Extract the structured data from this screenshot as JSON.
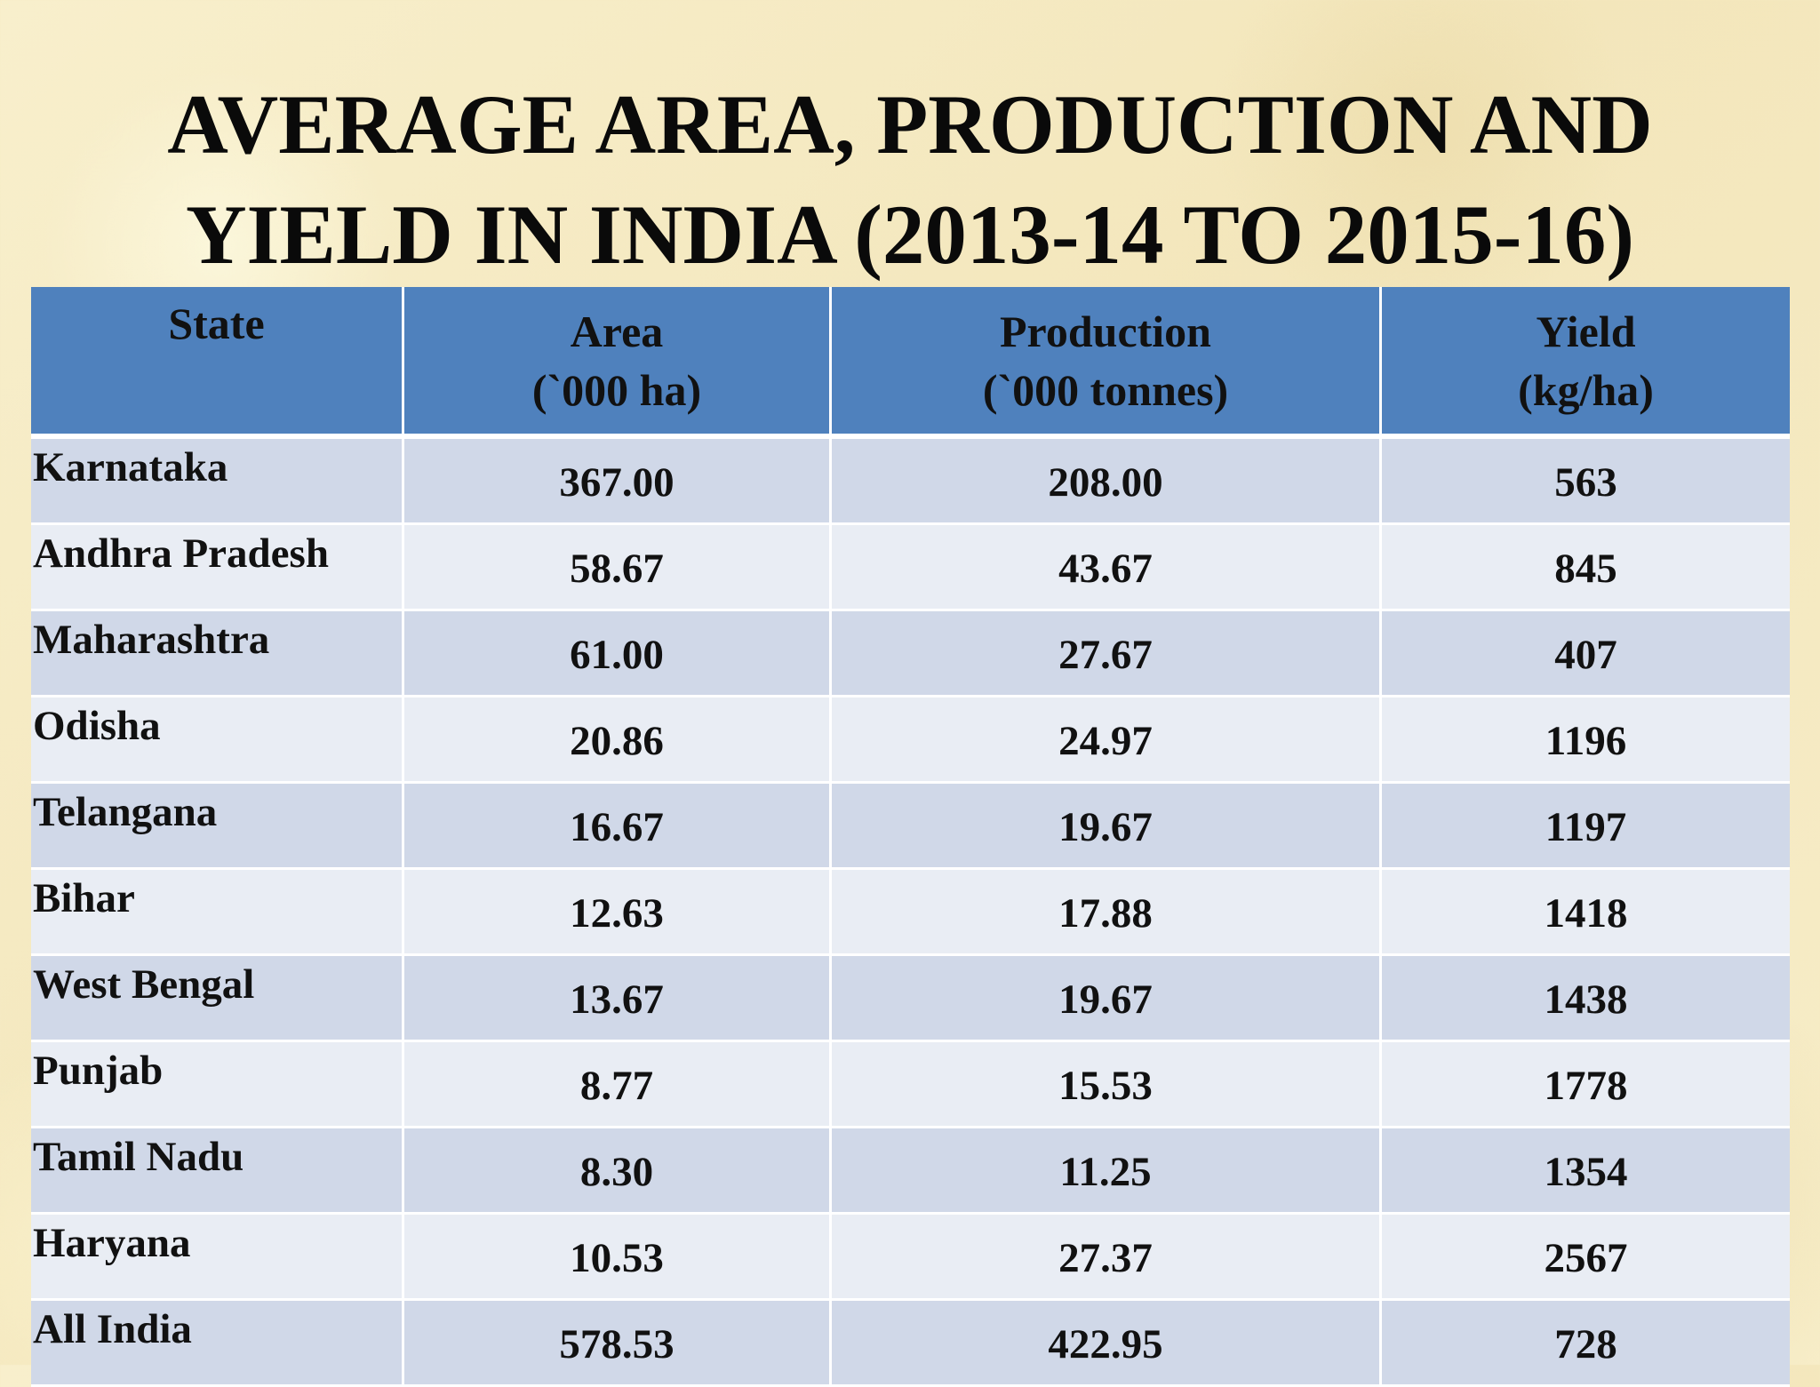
{
  "slide": {
    "title_line1": "AVERAGE AREA, PRODUCTION AND",
    "title_line2": "YIELD IN INDIA (2013-14 TO 2015-16)"
  },
  "table": {
    "headers": {
      "state": "State",
      "area_line1": "Area",
      "area_line2": "(`000 ha)",
      "production_line1": "Production",
      "production_line2": "(`000 tonnes)",
      "yield_line1": "Yield",
      "yield_line2": "(kg/ha)"
    },
    "rows": [
      {
        "state": "Karnataka",
        "area": "367.00",
        "production": "208.00",
        "yield": "563"
      },
      {
        "state": "Andhra Pradesh",
        "area": "58.67",
        "production": "43.67",
        "yield": "845"
      },
      {
        "state": "Maharashtra",
        "area": "61.00",
        "production": "27.67",
        "yield": "407"
      },
      {
        "state": "Odisha",
        "area": "20.86",
        "production": "24.97",
        "yield": "1196"
      },
      {
        "state": "Telangana",
        "area": "16.67",
        "production": "19.67",
        "yield": "1197"
      },
      {
        "state": "Bihar",
        "area": "12.63",
        "production": "17.88",
        "yield": "1418"
      },
      {
        "state": "West Bengal",
        "area": "13.67",
        "production": "19.67",
        "yield": "1438"
      },
      {
        "state": "Punjab",
        "area": "8.77",
        "production": "15.53",
        "yield": "1778"
      },
      {
        "state": "Tamil Nadu",
        "area": "8.30",
        "production": "11.25",
        "yield": "1354"
      },
      {
        "state": "Haryana",
        "area": "10.53",
        "production": "27.37",
        "yield": "2567"
      },
      {
        "state": "All India",
        "area": "578.53",
        "production": "422.95",
        "yield": "728"
      }
    ]
  },
  "colors": {
    "header_fill": "#4f81bd",
    "row_band_dark": "#d0d8e8",
    "row_band_light": "#e9edf4",
    "background": "#f6ecc4"
  }
}
